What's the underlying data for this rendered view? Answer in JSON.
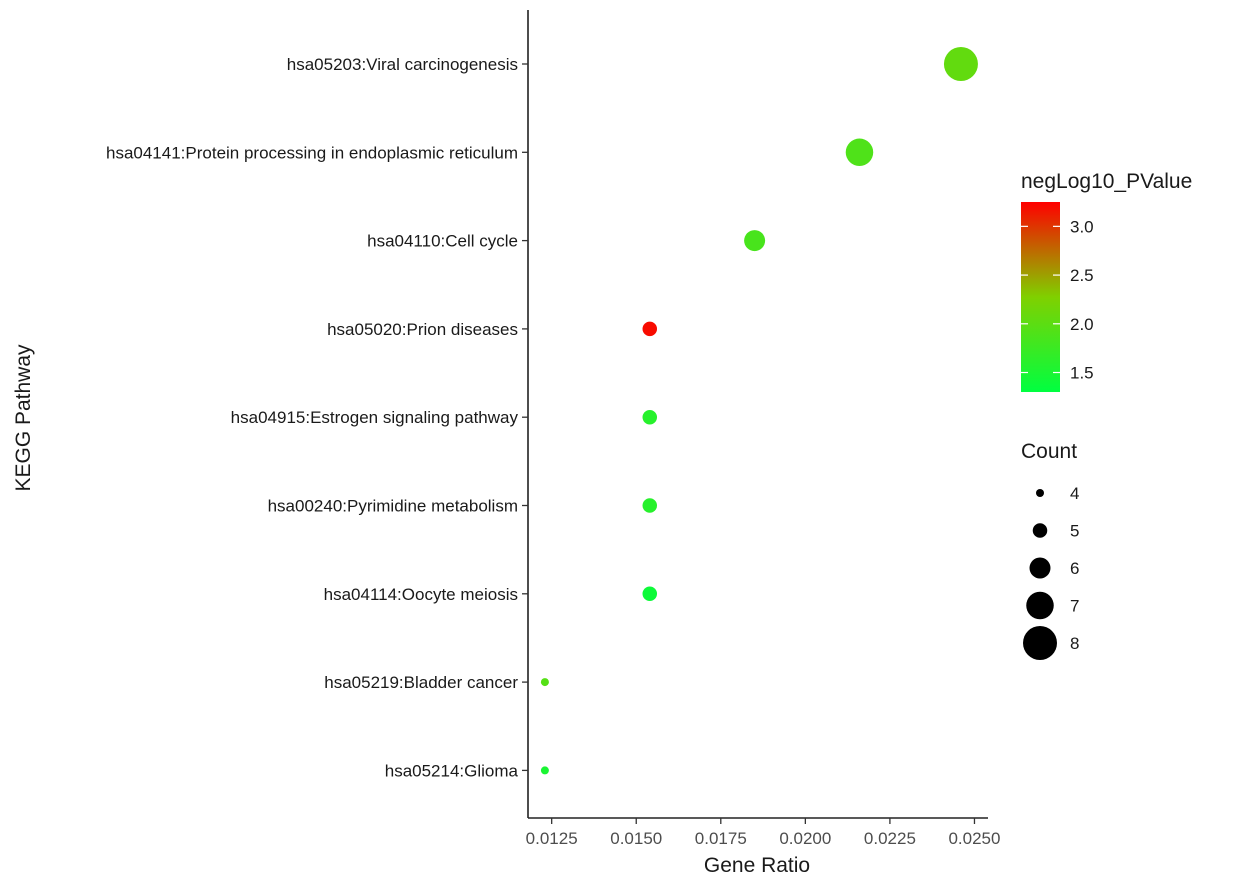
{
  "chart_data": {
    "type": "scatter",
    "xlabel": "Gene Ratio",
    "ylabel": "KEGG Pathway",
    "xlim": [
      0.0118,
      0.0254
    ],
    "x_ticks": [
      "0.0125",
      "0.0150",
      "0.0175",
      "0.0200",
      "0.0225",
      "0.0250"
    ],
    "x_tick_values": [
      0.0125,
      0.015,
      0.0175,
      0.02,
      0.0225,
      0.025
    ],
    "grid": false,
    "legend_position": "right",
    "color_legend": {
      "title": "negLog10_PValue",
      "range": [
        1.3,
        3.25
      ],
      "ticks": [
        "3.0",
        "2.5",
        "2.0",
        "1.5"
      ],
      "tick_values": [
        3.0,
        2.5,
        2.0,
        1.5
      ],
      "low_color": "#00ff40",
      "mid_color": "#80d000",
      "high_color": "#ff0000"
    },
    "size_legend": {
      "title": "Count",
      "labels": [
        "4",
        "5",
        "6",
        "7",
        "8"
      ],
      "values": [
        4,
        5,
        6,
        7,
        8
      ]
    },
    "points": [
      {
        "pathway": "hsa05203:Viral carcinogenesis",
        "gene_ratio": 0.0246,
        "count": 8,
        "negLog10_PValue": 2.05
      },
      {
        "pathway": "hsa04141:Protein processing in endoplasmic reticulum",
        "gene_ratio": 0.0216,
        "count": 7,
        "negLog10_PValue": 1.9
      },
      {
        "pathway": "hsa04110:Cell cycle",
        "gene_ratio": 0.0185,
        "count": 6,
        "negLog10_PValue": 1.85
      },
      {
        "pathway": "hsa05020:Prion diseases",
        "gene_ratio": 0.0154,
        "count": 5,
        "negLog10_PValue": 3.2
      },
      {
        "pathway": "hsa04915:Estrogen signaling pathway",
        "gene_ratio": 0.0154,
        "count": 5,
        "negLog10_PValue": 1.6
      },
      {
        "pathway": "hsa00240:Pyrimidine metabolism",
        "gene_ratio": 0.0154,
        "count": 5,
        "negLog10_PValue": 1.6
      },
      {
        "pathway": "hsa04114:Oocyte meiosis",
        "gene_ratio": 0.0154,
        "count": 5,
        "negLog10_PValue": 1.4
      },
      {
        "pathway": "hsa05219:Bladder cancer",
        "gene_ratio": 0.0123,
        "count": 4,
        "negLog10_PValue": 1.95
      },
      {
        "pathway": "hsa05214:Glioma",
        "gene_ratio": 0.0123,
        "count": 4,
        "negLog10_PValue": 1.5
      }
    ]
  }
}
